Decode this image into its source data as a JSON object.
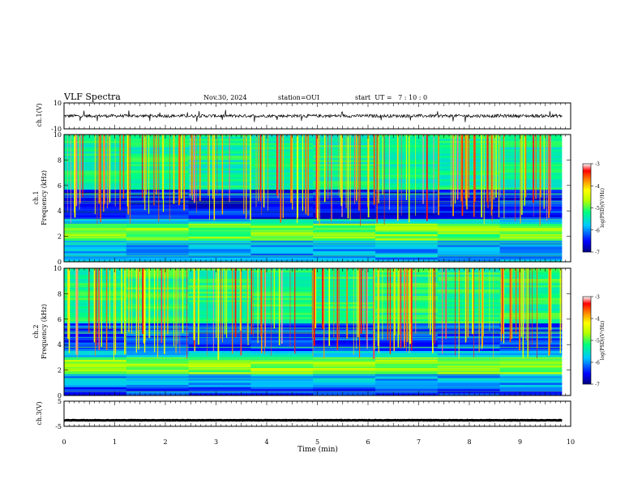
{
  "header": {
    "title": "VLF Spectra",
    "date": "Nov.30, 2024",
    "station": "station=OUI",
    "start_ut": "start  UT =   7 : 10 : 0"
  },
  "colorbar": {
    "label": "log(PSD)(V²/Hz)",
    "ticks": [
      -3,
      -4,
      -5,
      -6,
      -7
    ],
    "range": [
      -7,
      -3
    ],
    "colors": [
      "#000080",
      "#0000ff",
      "#00c8ff",
      "#00ff80",
      "#b4ff00",
      "#ffff00",
      "#ff8000",
      "#ff0000",
      "#ffffff"
    ]
  },
  "chart_data": [
    {
      "type": "line",
      "panel": "ch1-waveform",
      "ylabel": "ch.1(V)",
      "ylim": [
        -10,
        10
      ],
      "yticks": [
        "10",
        "-10"
      ],
      "mean": 0,
      "noise_amplitude": 1.2,
      "color": "#000000"
    },
    {
      "type": "heatmap",
      "panel": "ch1-spectrogram",
      "ylabel_line1": "ch.1",
      "ylabel_line2": "Frequency (kHz)",
      "ylim": [
        0,
        10
      ],
      "yticks": [
        "0",
        "2",
        "4",
        "6",
        "8",
        "10"
      ],
      "bands_khz": [
        {
          "from": 0.0,
          "to": 0.6,
          "level": -6.0
        },
        {
          "from": 0.6,
          "to": 1.6,
          "level": -5.9
        },
        {
          "from": 1.6,
          "to": 3.0,
          "level": -4.9
        },
        {
          "from": 3.0,
          "to": 3.4,
          "level": -5.7
        },
        {
          "from": 3.4,
          "to": 5.6,
          "level": -6.5
        },
        {
          "from": 5.6,
          "to": 10.0,
          "level": -5.3
        }
      ]
    },
    {
      "type": "heatmap",
      "panel": "ch2-spectrogram",
      "ylabel_line1": "ch.2",
      "ylabel_line2": "Frequency (kHz)",
      "ylim": [
        0,
        10
      ],
      "yticks": [
        "0",
        "2",
        "4",
        "6",
        "8",
        "10"
      ],
      "bands_khz": [
        {
          "from": 0.0,
          "to": 0.6,
          "level": -6.3
        },
        {
          "from": 0.6,
          "to": 1.7,
          "level": -5.9
        },
        {
          "from": 1.7,
          "to": 3.0,
          "level": -4.8
        },
        {
          "from": 3.0,
          "to": 3.5,
          "level": -5.7
        },
        {
          "from": 3.5,
          "to": 5.6,
          "level": -6.3
        },
        {
          "from": 5.6,
          "to": 10.0,
          "level": -5.2
        }
      ]
    },
    {
      "type": "line",
      "panel": "ch3-waveform",
      "ylabel": "ch.3(V)",
      "ylim": [
        -5,
        5
      ],
      "yticks": [
        "5",
        "-5"
      ],
      "mean": -2.6,
      "noise_amplitude": 0.08,
      "color": "#000000"
    }
  ],
  "x_axis": {
    "label": "Time (min)",
    "xlim": [
      0,
      10
    ],
    "ticks": [
      "0",
      "1",
      "2",
      "3",
      "4",
      "5",
      "6",
      "7",
      "8",
      "9",
      "10"
    ],
    "data_end_min": 9.83
  }
}
